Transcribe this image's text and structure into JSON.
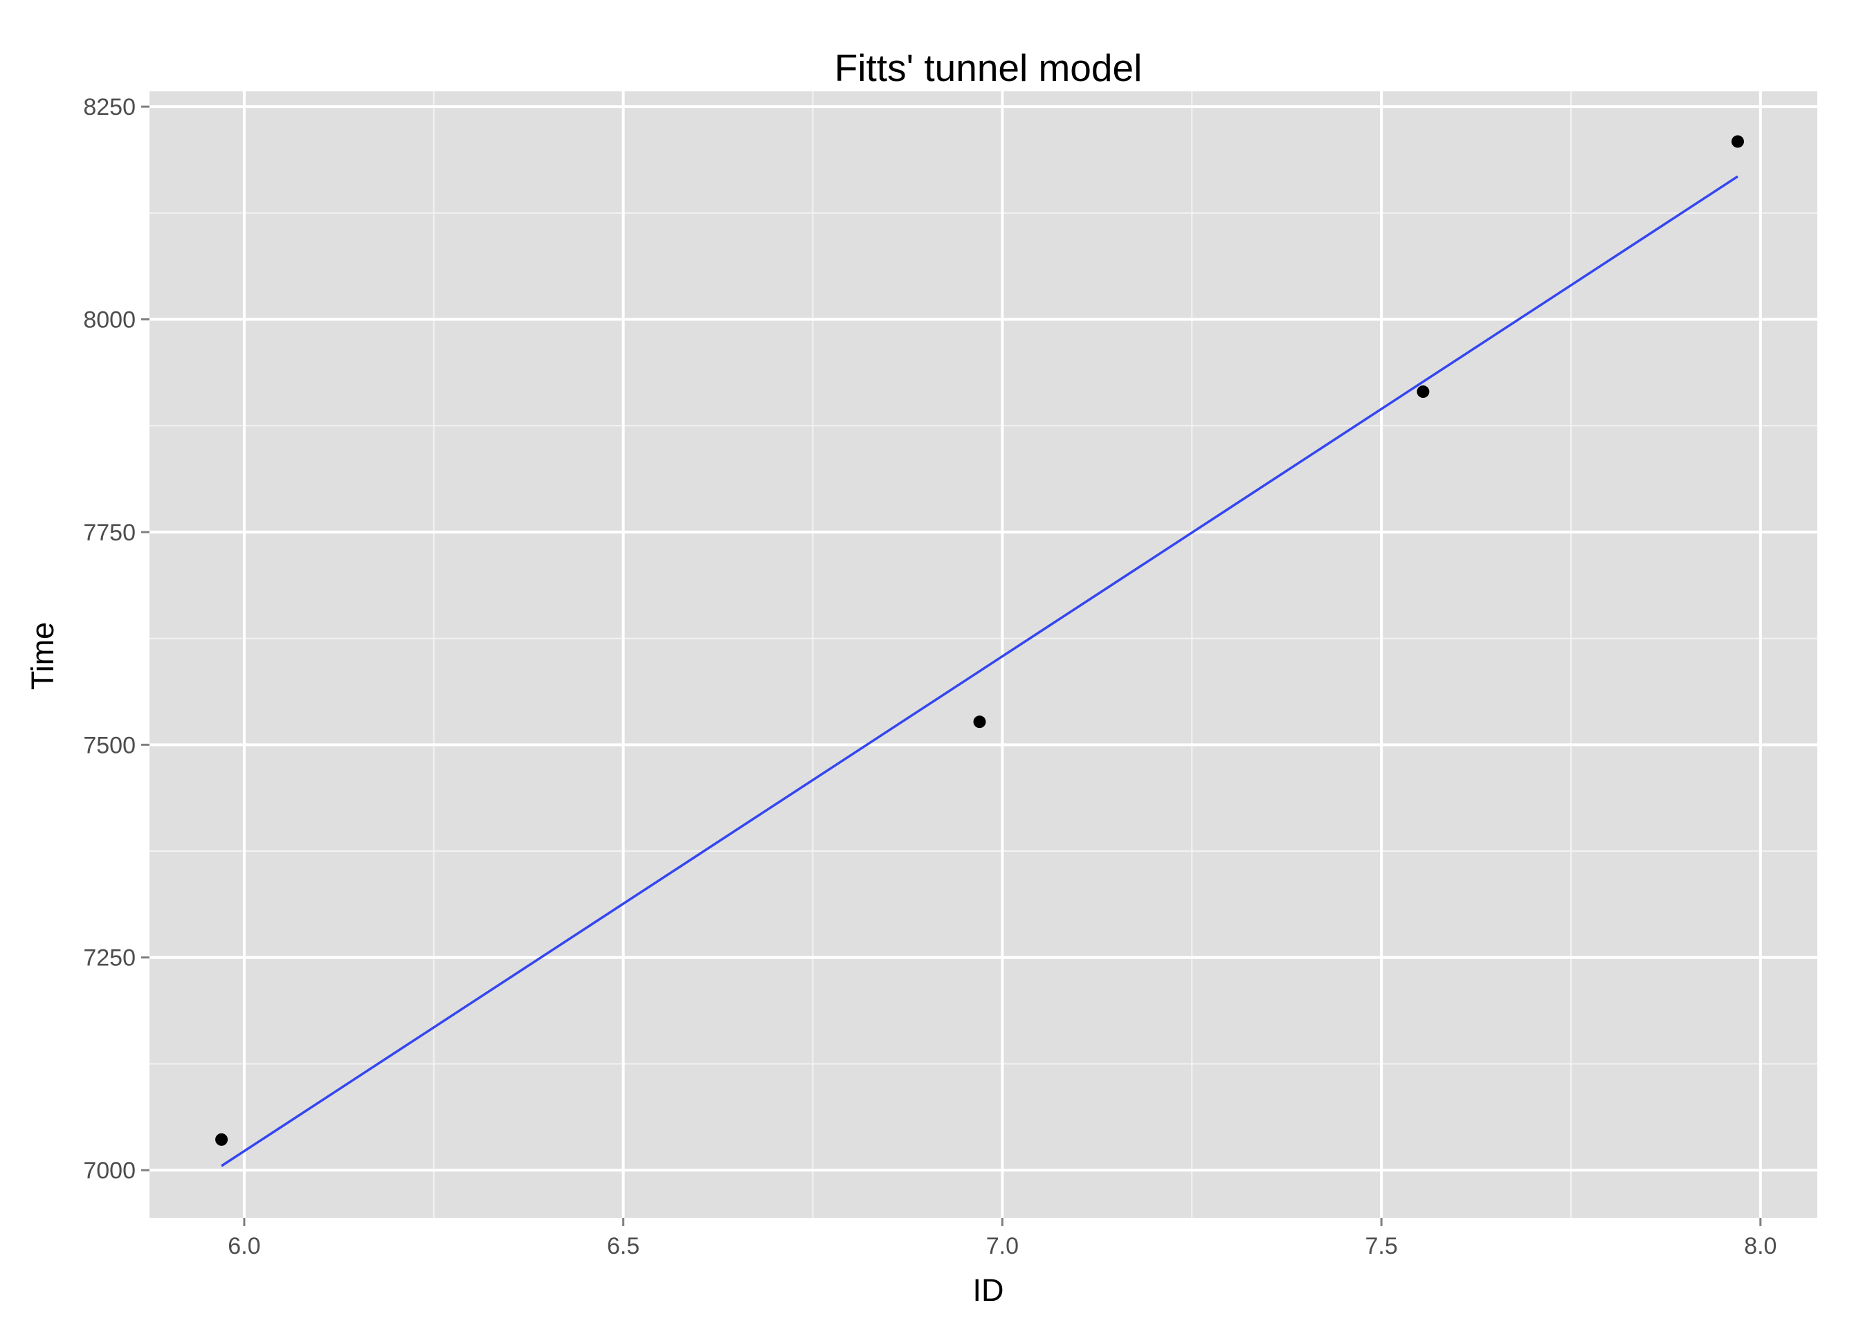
{
  "chart_data": {
    "type": "scatter",
    "title": "Fitts' tunnel model",
    "xlabel": "ID",
    "ylabel": "Time",
    "xlim": [
      5.875,
      8.075
    ],
    "ylim": [
      6944,
      8268
    ],
    "x_ticks": [
      6.0,
      6.5,
      7.0,
      7.5,
      8.0
    ],
    "x_tick_labels": [
      "6.0",
      "6.5",
      "7.0",
      "7.5",
      "8.0"
    ],
    "y_ticks": [
      7000,
      7250,
      7500,
      7750,
      8000,
      8250
    ],
    "y_tick_labels": [
      "7000",
      "7250",
      "7500",
      "7750",
      "8000",
      "8250"
    ],
    "grid": true,
    "background": "#dfdfdf",
    "points": [
      {
        "x": 5.97,
        "y": 7036
      },
      {
        "x": 6.97,
        "y": 7527
      },
      {
        "x": 7.555,
        "y": 7915
      },
      {
        "x": 7.97,
        "y": 8209
      }
    ],
    "fit_line": {
      "x": [
        5.97,
        7.97
      ],
      "y": [
        7005,
        8168
      ],
      "color": "#3446f0"
    },
    "point_color": "#000000",
    "grid_color": "#ffffff"
  }
}
